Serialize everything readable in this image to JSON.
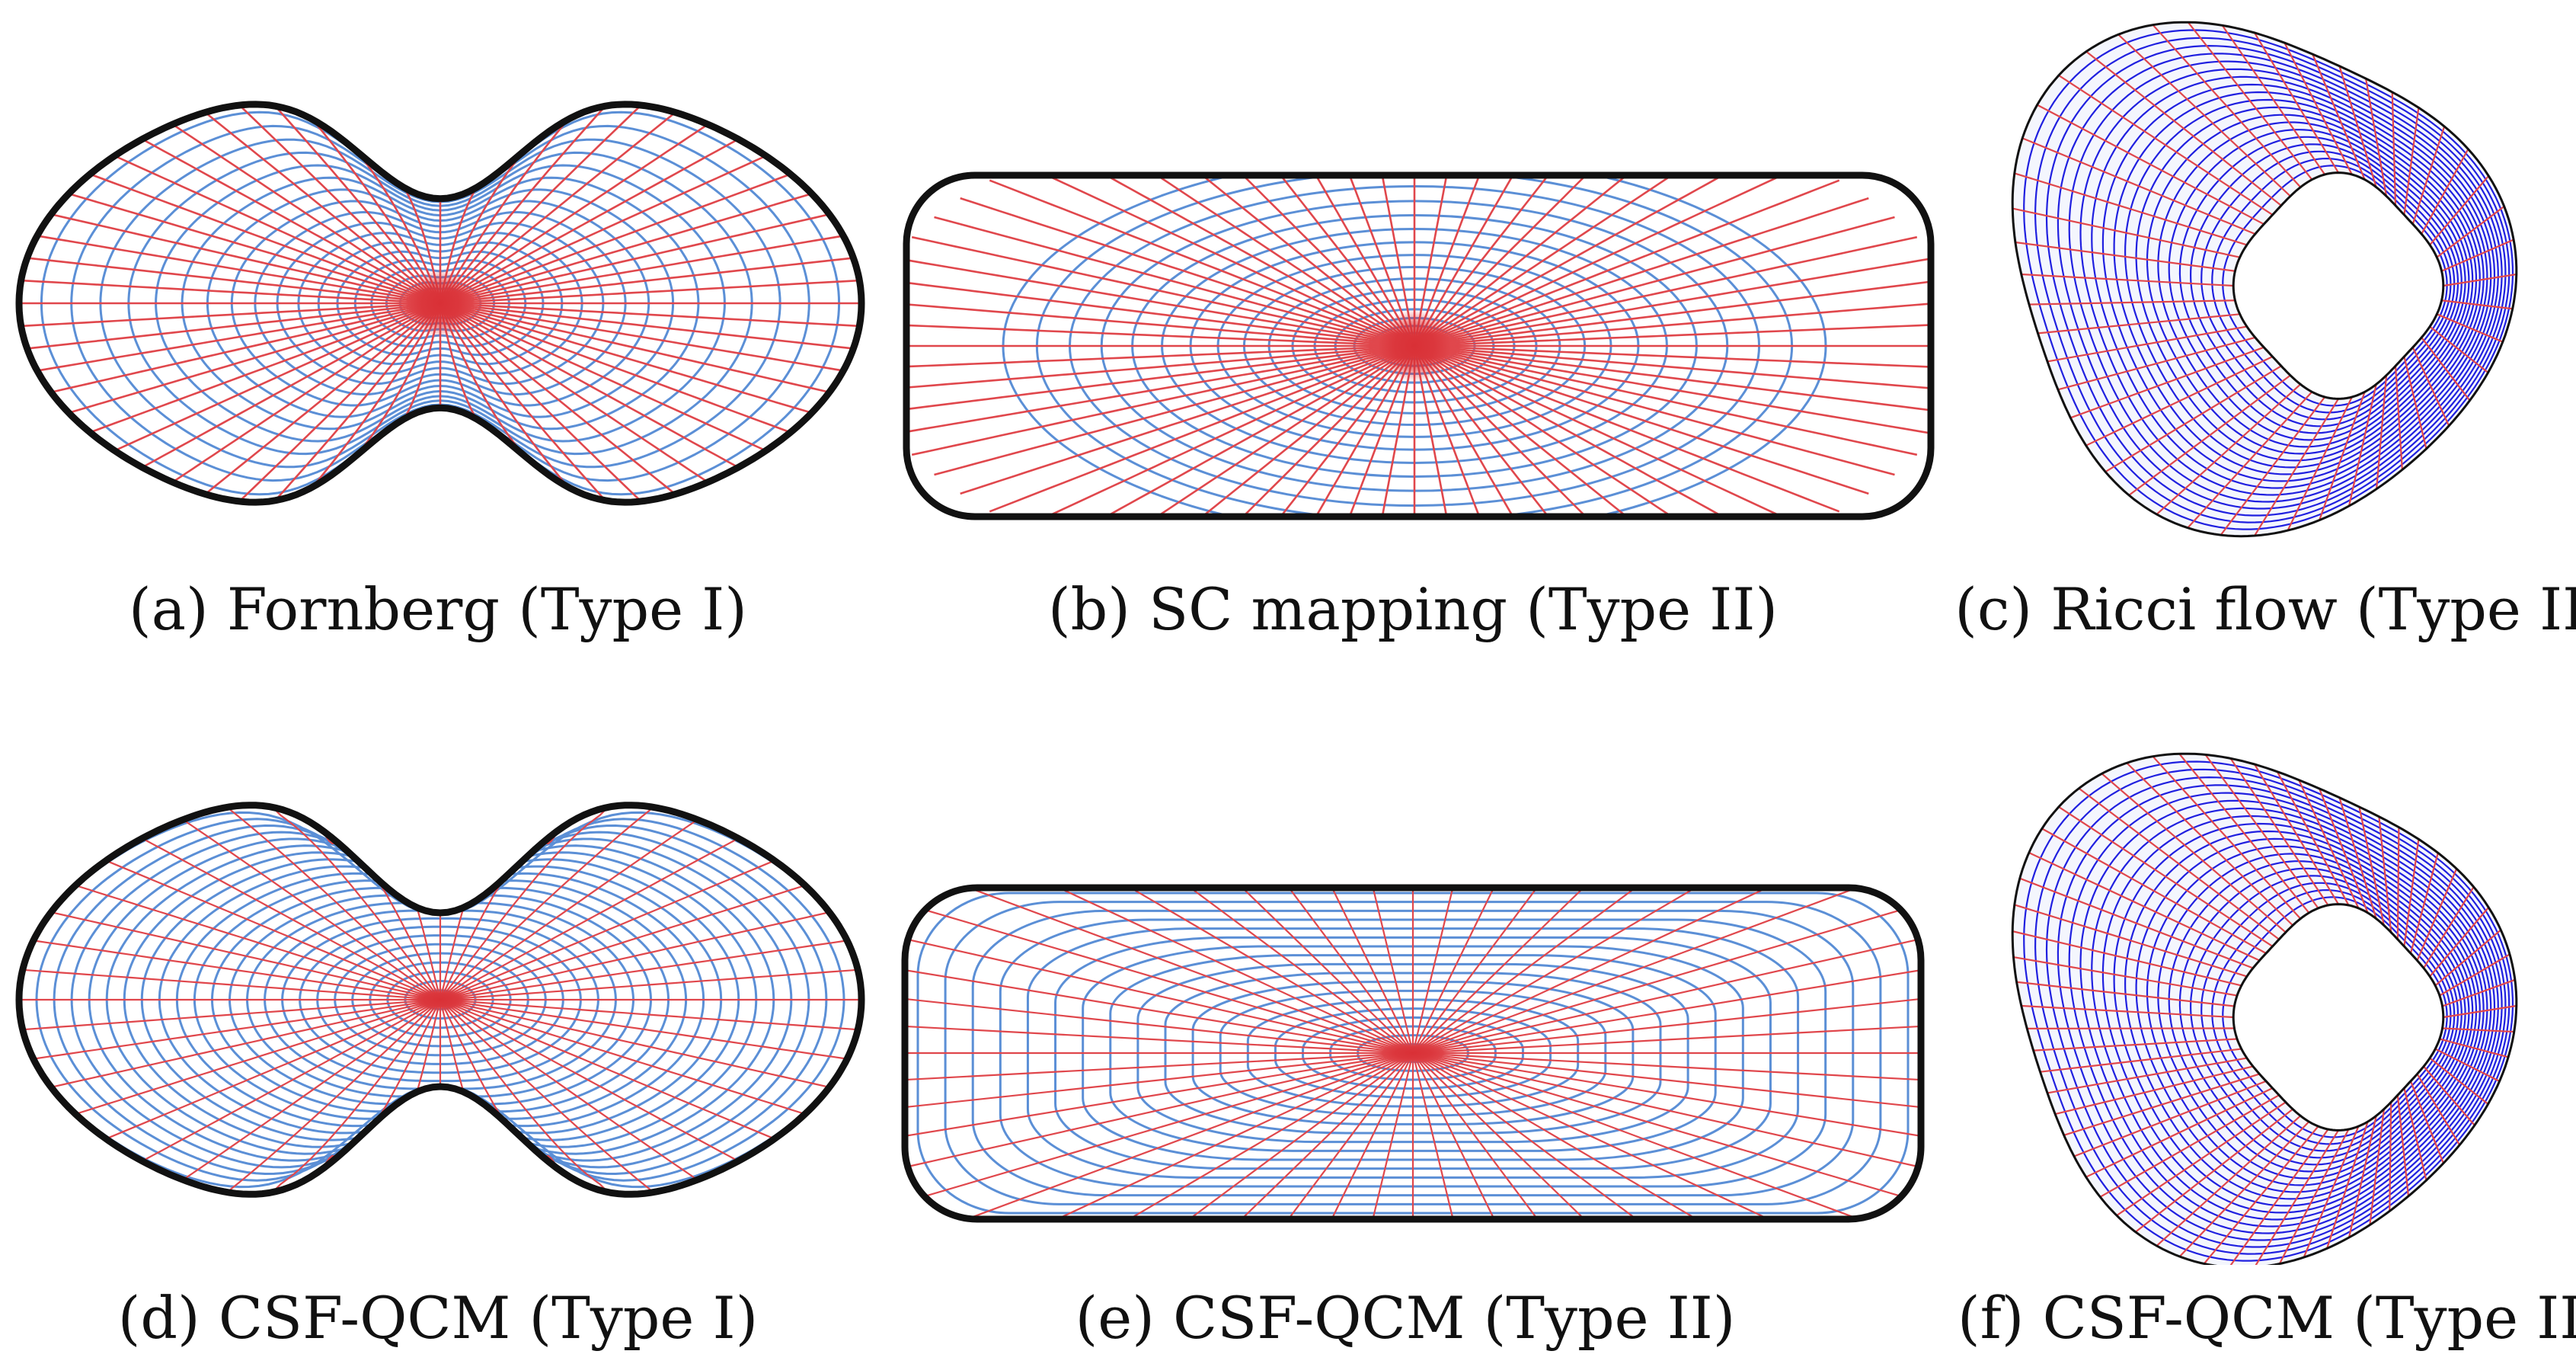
{
  "captions": {
    "a": "(a) Fornberg (Type I)",
    "b": "(b) SC mapping (Type II)",
    "c": "(c) Ricci flow (Type III)",
    "d": "(d) CSF-QCM (Type I)",
    "e": "(e) CSF-QCM (Type II)",
    "f": "(f) CSF-QCM (Type III)"
  },
  "colors": {
    "red": "#e0474c",
    "blue": "#5b8fd6",
    "deep_blue": "#2020e0",
    "outline": "#111111",
    "center_glow": "#d93036"
  }
}
